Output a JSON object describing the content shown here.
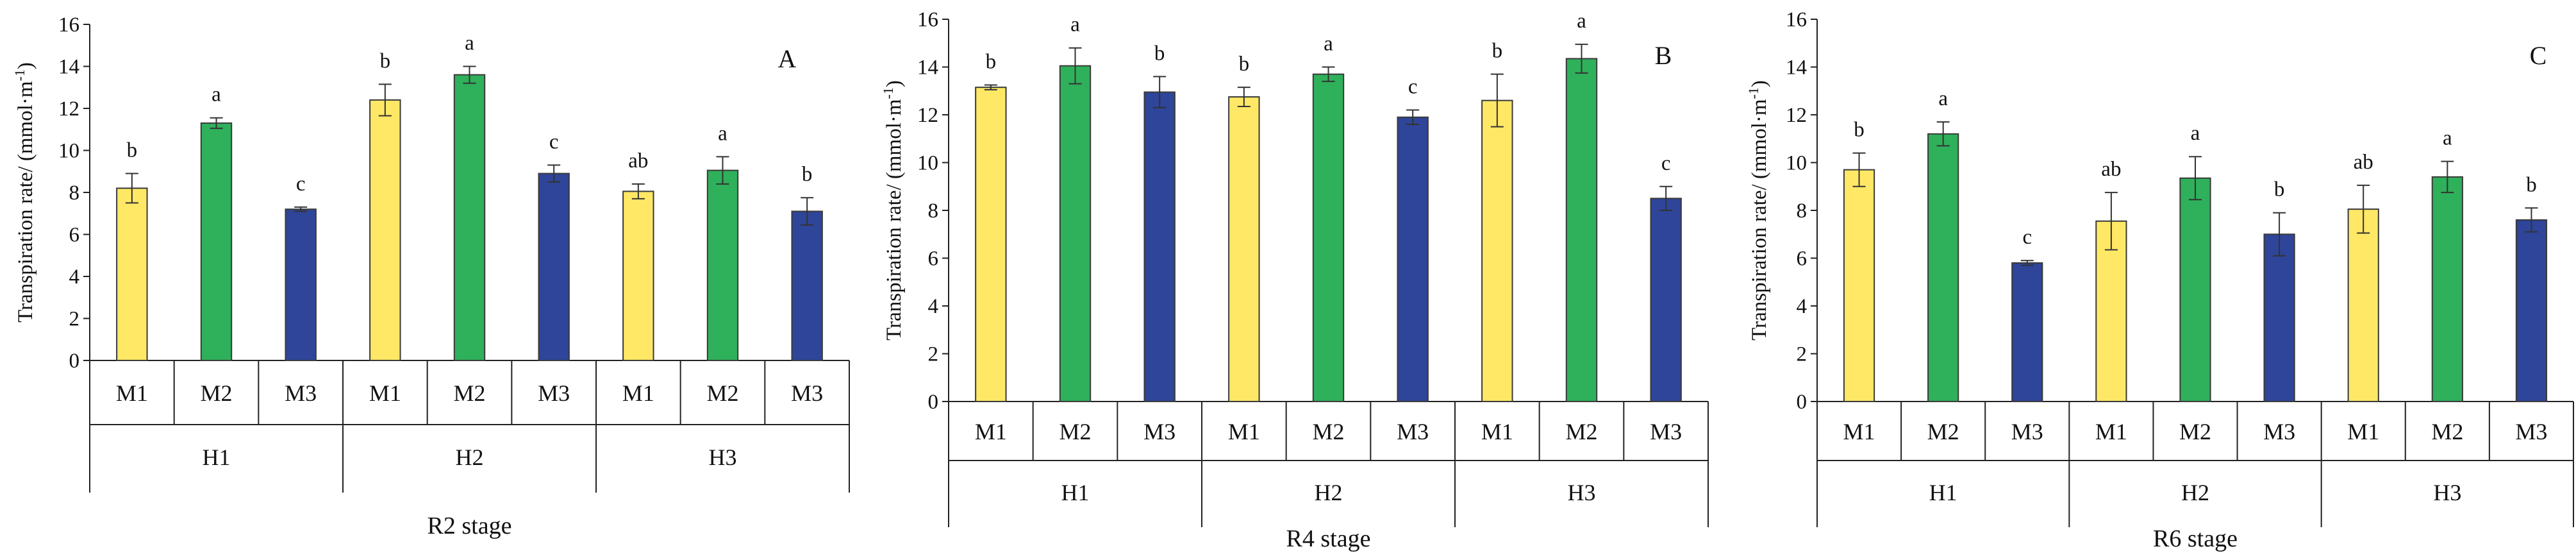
{
  "figure": {
    "y_axis_label": "Transpiration rate/ (mmol·m",
    "y_axis_label_sup": "-1",
    "y_axis_label_end": ")"
  },
  "colors": {
    "M1": "#FFE866",
    "M2": "#2FB05B",
    "M3": "#2E4599",
    "outline": "#3a3a3a",
    "axis": "#222222"
  },
  "chart_data": [
    {
      "type": "bar",
      "panel": "A",
      "stage": "R2 stage",
      "ylim": [
        0,
        16
      ],
      "yticks": [
        0,
        2,
        4,
        6,
        8,
        10,
        12,
        14,
        16
      ],
      "groups": [
        {
          "name": "H1",
          "bars": [
            {
              "cat": "M1",
              "value": 8.2,
              "err": 0.7,
              "sig": "b"
            },
            {
              "cat": "M2",
              "value": 11.3,
              "err": 0.25,
              "sig": "a"
            },
            {
              "cat": "M3",
              "value": 7.2,
              "err": 0.1,
              "sig": "c"
            }
          ]
        },
        {
          "name": "H2",
          "bars": [
            {
              "cat": "M1",
              "value": 12.4,
              "err": 0.75,
              "sig": "b"
            },
            {
              "cat": "M2",
              "value": 13.6,
              "err": 0.4,
              "sig": "a"
            },
            {
              "cat": "M3",
              "value": 8.9,
              "err": 0.4,
              "sig": "c"
            }
          ]
        },
        {
          "name": "H3",
          "bars": [
            {
              "cat": "M1",
              "value": 8.05,
              "err": 0.35,
              "sig": "ab"
            },
            {
              "cat": "M2",
              "value": 9.05,
              "err": 0.65,
              "sig": "a"
            },
            {
              "cat": "M3",
              "value": 7.1,
              "err": 0.65,
              "sig": "b"
            }
          ]
        }
      ]
    },
    {
      "type": "bar",
      "panel": "B",
      "stage": "R4 stage",
      "ylim": [
        0,
        16
      ],
      "yticks": [
        0,
        2,
        4,
        6,
        8,
        10,
        12,
        14,
        16
      ],
      "groups": [
        {
          "name": "H1",
          "bars": [
            {
              "cat": "M1",
              "value": 13.15,
              "err": 0.1,
              "sig": "b"
            },
            {
              "cat": "M2",
              "value": 14.05,
              "err": 0.75,
              "sig": "a"
            },
            {
              "cat": "M3",
              "value": 12.95,
              "err": 0.65,
              "sig": "b"
            }
          ]
        },
        {
          "name": "H2",
          "bars": [
            {
              "cat": "M1",
              "value": 12.75,
              "err": 0.4,
              "sig": "b"
            },
            {
              "cat": "M2",
              "value": 13.7,
              "err": 0.3,
              "sig": "a"
            },
            {
              "cat": "M3",
              "value": 11.9,
              "err": 0.3,
              "sig": "c"
            }
          ]
        },
        {
          "name": "H3",
          "bars": [
            {
              "cat": "M1",
              "value": 12.6,
              "err": 1.1,
              "sig": "b"
            },
            {
              "cat": "M2",
              "value": 14.35,
              "err": 0.6,
              "sig": "a"
            },
            {
              "cat": "M3",
              "value": 8.5,
              "err": 0.5,
              "sig": "c"
            }
          ]
        }
      ]
    },
    {
      "type": "bar",
      "panel": "C",
      "stage": "R6 stage",
      "ylim": [
        0,
        16
      ],
      "yticks": [
        0,
        2,
        4,
        6,
        8,
        10,
        12,
        14,
        16
      ],
      "groups": [
        {
          "name": "H1",
          "bars": [
            {
              "cat": "M1",
              "value": 9.7,
              "err": 0.7,
              "sig": "b"
            },
            {
              "cat": "M2",
              "value": 11.2,
              "err": 0.5,
              "sig": "a"
            },
            {
              "cat": "M3",
              "value": 5.8,
              "err": 0.1,
              "sig": "c"
            }
          ]
        },
        {
          "name": "H2",
          "bars": [
            {
              "cat": "M1",
              "value": 7.55,
              "err": 1.2,
              "sig": "ab"
            },
            {
              "cat": "M2",
              "value": 9.35,
              "err": 0.9,
              "sig": "a"
            },
            {
              "cat": "M3",
              "value": 7.0,
              "err": 0.9,
              "sig": "b"
            }
          ]
        },
        {
          "name": "H3",
          "bars": [
            {
              "cat": "M1",
              "value": 8.05,
              "err": 1.0,
              "sig": "ab"
            },
            {
              "cat": "M2",
              "value": 9.4,
              "err": 0.65,
              "sig": "a"
            },
            {
              "cat": "M3",
              "value": 7.6,
              "err": 0.5,
              "sig": "b"
            }
          ]
        }
      ]
    }
  ]
}
